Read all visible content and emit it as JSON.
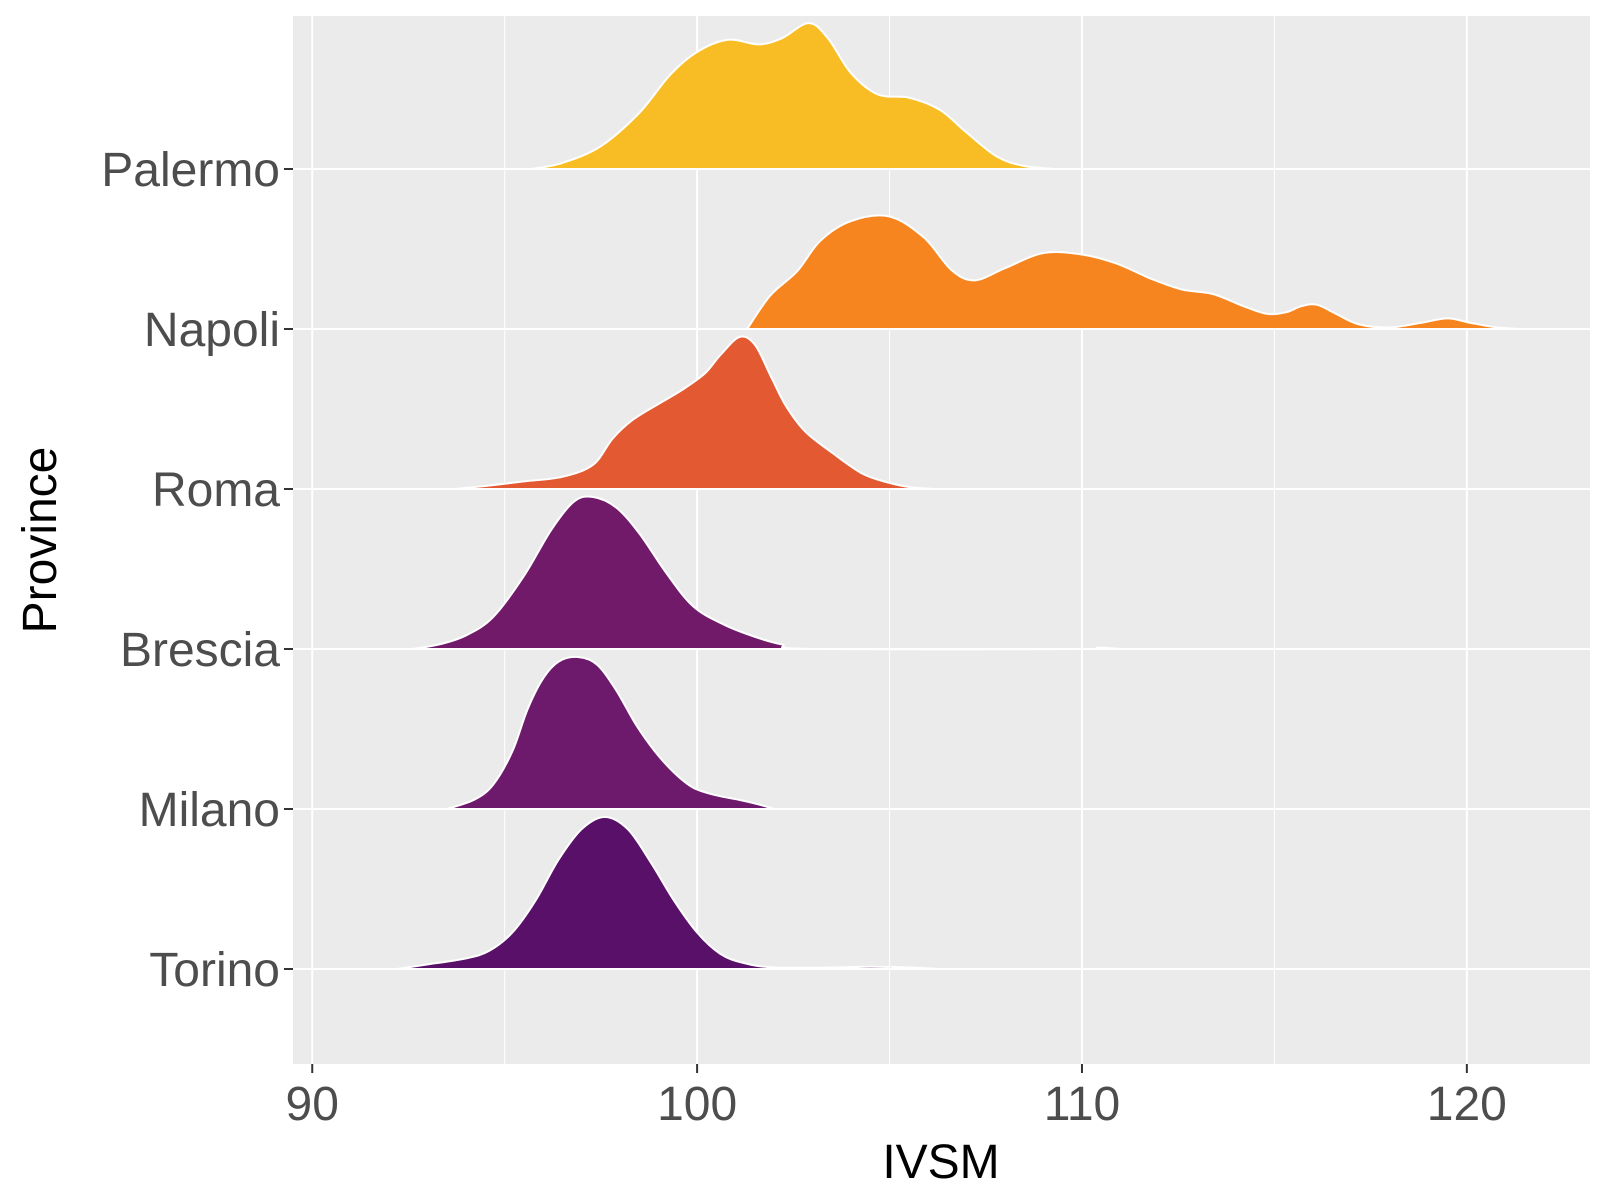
{
  "chart_data": {
    "type": "area",
    "subtype": "ridgeline",
    "title": "",
    "xlabel": "IVSM",
    "ylabel": "Province",
    "xlim": [
      89.5,
      123.2
    ],
    "x_ticks": [
      90,
      100,
      110,
      120
    ],
    "grid": true,
    "legend": "none",
    "background": "#ebebeb",
    "categories": [
      "Torino",
      "Milano",
      "Brescia",
      "Roma",
      "Napoli",
      "Palermo"
    ],
    "series": [
      {
        "name": "Torino",
        "color": "#581069",
        "points": [
          [
            92.2,
            0
          ],
          [
            93,
            0.03
          ],
          [
            94,
            0.07
          ],
          [
            94.6,
            0.12
          ],
          [
            95.2,
            0.24
          ],
          [
            95.8,
            0.45
          ],
          [
            96.4,
            0.72
          ],
          [
            97,
            0.92
          ],
          [
            97.6,
            1.0
          ],
          [
            98.2,
            0.92
          ],
          [
            98.8,
            0.7
          ],
          [
            99.4,
            0.45
          ],
          [
            100,
            0.24
          ],
          [
            100.6,
            0.1
          ],
          [
            101.2,
            0.04
          ],
          [
            102,
            0.01
          ],
          [
            103.5,
            0.01
          ],
          [
            104.5,
            0.015
          ],
          [
            105.5,
            0.01
          ],
          [
            106.3,
            0
          ]
        ]
      },
      {
        "name": "Milano",
        "color": "#6d1a6c",
        "points": [
          [
            93.5,
            0
          ],
          [
            94.2,
            0.06
          ],
          [
            94.7,
            0.16
          ],
          [
            95.2,
            0.38
          ],
          [
            95.6,
            0.66
          ],
          [
            96,
            0.86
          ],
          [
            96.4,
            0.97
          ],
          [
            96.9,
            1.0
          ],
          [
            97.4,
            0.95
          ],
          [
            97.9,
            0.78
          ],
          [
            98.4,
            0.56
          ],
          [
            98.9,
            0.38
          ],
          [
            99.4,
            0.24
          ],
          [
            99.9,
            0.14
          ],
          [
            100.5,
            0.09
          ],
          [
            101.1,
            0.06
          ],
          [
            101.6,
            0.03
          ],
          [
            102,
            0
          ]
        ]
      },
      {
        "name": "Brescia",
        "color": "#721a6a",
        "points": [
          [
            92.6,
            0
          ],
          [
            93.3,
            0.03
          ],
          [
            94,
            0.09
          ],
          [
            94.7,
            0.21
          ],
          [
            95.5,
            0.48
          ],
          [
            96.2,
            0.78
          ],
          [
            96.8,
            0.97
          ],
          [
            97.3,
            1.0
          ],
          [
            97.9,
            0.93
          ],
          [
            98.5,
            0.76
          ],
          [
            99.2,
            0.5
          ],
          [
            99.9,
            0.28
          ],
          [
            100.7,
            0.16
          ],
          [
            101.5,
            0.08
          ],
          [
            102.2,
            0.03
          ],
          [
            103,
            0
          ],
          [
            110,
            0
          ],
          [
            110.4,
            0.01
          ],
          [
            111,
            0
          ]
        ]
      },
      {
        "name": "Roma",
        "color": "#e35932",
        "points": [
          [
            93.7,
            0
          ],
          [
            94.5,
            0.02
          ],
          [
            95.5,
            0.05
          ],
          [
            96.5,
            0.08
          ],
          [
            97.3,
            0.16
          ],
          [
            97.8,
            0.33
          ],
          [
            98.3,
            0.45
          ],
          [
            99,
            0.56
          ],
          [
            99.6,
            0.65
          ],
          [
            100.2,
            0.76
          ],
          [
            100.6,
            0.88
          ],
          [
            101.1,
            1.0
          ],
          [
            101.5,
            0.95
          ],
          [
            101.9,
            0.75
          ],
          [
            102.3,
            0.55
          ],
          [
            102.8,
            0.38
          ],
          [
            103.5,
            0.24
          ],
          [
            104.3,
            0.1
          ],
          [
            105,
            0.04
          ],
          [
            105.6,
            0.01
          ],
          [
            106.2,
            0
          ]
        ]
      },
      {
        "name": "Napoli",
        "color": "#f6851f",
        "points": [
          [
            101.3,
            0
          ],
          [
            101.9,
            0.22
          ],
          [
            102.6,
            0.38
          ],
          [
            103.2,
            0.58
          ],
          [
            104,
            0.71
          ],
          [
            105,
            0.74
          ],
          [
            105.9,
            0.6
          ],
          [
            106.6,
            0.39
          ],
          [
            107.2,
            0.32
          ],
          [
            108,
            0.4
          ],
          [
            109,
            0.5
          ],
          [
            110,
            0.49
          ],
          [
            110.9,
            0.43
          ],
          [
            111.8,
            0.33
          ],
          [
            112.6,
            0.26
          ],
          [
            113.4,
            0.23
          ],
          [
            114.2,
            0.15
          ],
          [
            114.8,
            0.1
          ],
          [
            115.3,
            0.11
          ],
          [
            115.7,
            0.15
          ],
          [
            116.1,
            0.16
          ],
          [
            116.6,
            0.1
          ],
          [
            117.2,
            0.03
          ],
          [
            118,
            0.01
          ],
          [
            118.8,
            0.04
          ],
          [
            119.5,
            0.07
          ],
          [
            120.1,
            0.04
          ],
          [
            120.8,
            0.01
          ],
          [
            121.4,
            0
          ]
        ]
      },
      {
        "name": "Palermo",
        "color": "#f8bd24",
        "points": [
          [
            95.7,
            0
          ],
          [
            96.5,
            0.04
          ],
          [
            97.5,
            0.15
          ],
          [
            98.5,
            0.37
          ],
          [
            99.3,
            0.62
          ],
          [
            100,
            0.77
          ],
          [
            100.8,
            0.85
          ],
          [
            101.6,
            0.82
          ],
          [
            102.2,
            0.86
          ],
          [
            102.9,
            0.96
          ],
          [
            103.4,
            0.86
          ],
          [
            104,
            0.63
          ],
          [
            104.7,
            0.49
          ],
          [
            105.5,
            0.47
          ],
          [
            106.3,
            0.39
          ],
          [
            107,
            0.24
          ],
          [
            107.8,
            0.08
          ],
          [
            108.5,
            0.02
          ],
          [
            109.3,
            0
          ]
        ]
      }
    ]
  }
}
